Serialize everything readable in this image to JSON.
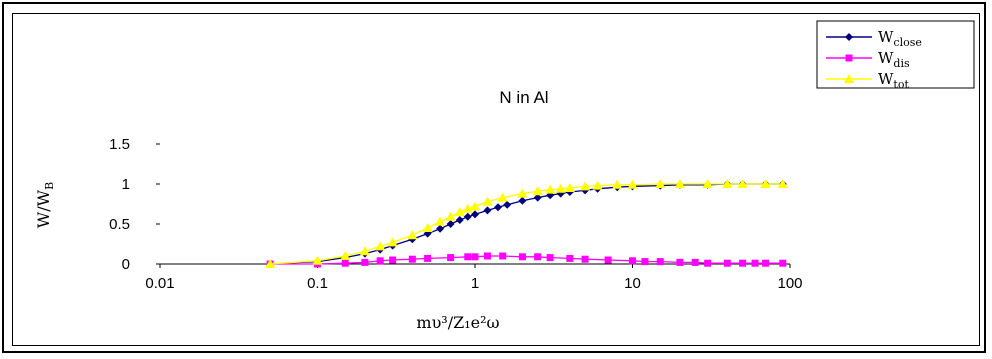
{
  "chart_data": {
    "type": "scatter",
    "title": "N in Al",
    "xlabel": "mυ³/Z₁e²ω",
    "ylabel": "W/W_B",
    "xscale": "log",
    "xlim": [
      0.01,
      100
    ],
    "ylim": [
      0,
      1.5
    ],
    "xticks": [
      0.01,
      0.1,
      1,
      10,
      100
    ],
    "xtick_labels": [
      "0.01",
      "0.1",
      "1",
      "10",
      "100"
    ],
    "yticks": [
      0,
      0.5,
      1,
      1.5
    ],
    "ytick_labels": [
      "0",
      "0.5",
      "1",
      "1.5"
    ],
    "grid": false,
    "legend_position": "top-right",
    "series": [
      {
        "name": "W_close",
        "legend_main": "W",
        "legend_sub": "close",
        "color": "#000080",
        "marker": "diamond",
        "x": [
          0.05,
          0.1,
          0.15,
          0.2,
          0.25,
          0.3,
          0.4,
          0.5,
          0.6,
          0.7,
          0.8,
          0.9,
          1.0,
          1.2,
          1.4,
          1.6,
          2.0,
          2.5,
          3.0,
          3.5,
          4.0,
          5.0,
          6.0,
          8.0,
          10,
          15,
          20,
          30,
          40,
          50,
          70,
          90
        ],
        "y": [
          0.0,
          0.03,
          0.08,
          0.13,
          0.18,
          0.23,
          0.31,
          0.38,
          0.44,
          0.5,
          0.55,
          0.59,
          0.62,
          0.67,
          0.71,
          0.74,
          0.79,
          0.83,
          0.86,
          0.88,
          0.9,
          0.92,
          0.94,
          0.96,
          0.97,
          0.98,
          0.99,
          0.99,
          1.0,
          1.0,
          1.0,
          1.0
        ]
      },
      {
        "name": "W_dis",
        "legend_main": "W",
        "legend_sub": "dis",
        "color": "#FF00FF",
        "marker": "square",
        "x": [
          0.05,
          0.1,
          0.15,
          0.2,
          0.25,
          0.3,
          0.4,
          0.5,
          0.7,
          0.9,
          1.0,
          1.2,
          1.5,
          2.0,
          2.5,
          3.0,
          4.0,
          5.0,
          7.0,
          10,
          12,
          15,
          20,
          25,
          30,
          40,
          50,
          60,
          70,
          90
        ],
        "y": [
          0.0,
          0.0,
          0.01,
          0.02,
          0.04,
          0.05,
          0.06,
          0.07,
          0.08,
          0.09,
          0.09,
          0.1,
          0.1,
          0.09,
          0.09,
          0.08,
          0.07,
          0.06,
          0.05,
          0.04,
          0.03,
          0.03,
          0.02,
          0.02,
          0.01,
          0.01,
          0.01,
          0.01,
          0.01,
          0.01
        ]
      },
      {
        "name": "W_tot",
        "legend_main": "W",
        "legend_sub": "tot",
        "color": "#FFFF00",
        "marker": "triangle",
        "x": [
          0.05,
          0.1,
          0.15,
          0.2,
          0.25,
          0.3,
          0.4,
          0.5,
          0.6,
          0.7,
          0.8,
          0.9,
          1.0,
          1.2,
          1.5,
          2.0,
          2.5,
          3.0,
          3.5,
          4.0,
          5.0,
          6.0,
          8.0,
          10,
          15,
          20,
          30,
          40,
          50,
          70,
          90
        ],
        "y": [
          0.0,
          0.04,
          0.1,
          0.16,
          0.22,
          0.27,
          0.36,
          0.45,
          0.53,
          0.59,
          0.65,
          0.69,
          0.72,
          0.78,
          0.83,
          0.88,
          0.91,
          0.93,
          0.94,
          0.95,
          0.97,
          0.98,
          0.99,
          0.99,
          1.0,
          1.0,
          1.0,
          1.0,
          1.0,
          1.0,
          1.0
        ]
      }
    ]
  }
}
